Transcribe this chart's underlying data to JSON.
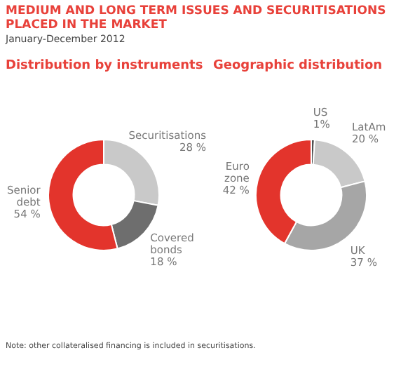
{
  "chart_data": [
    {
      "type": "other",
      "title": "MEDIUM AND LONG TERM ISSUES AND SECURITISATIONS PLACED IN THE MARKET",
      "subtitle": "January-December 2012"
    },
    {
      "type": "donut",
      "title": "Distribution by instruments",
      "categories": [
        "Securitisations",
        "Covered bonds",
        "Senior debt"
      ],
      "values": [
        28,
        18,
        54
      ],
      "colors": [
        "#c9c9c9",
        "#6e6e6e",
        "#e3342c"
      ],
      "value_labels": [
        "28 %",
        "18 %",
        "54 %"
      ]
    },
    {
      "type": "donut",
      "title": "Geographic distribution",
      "categories": [
        "US",
        "LatAm",
        "UK",
        "Euro zone"
      ],
      "values": [
        1,
        20,
        37,
        42
      ],
      "colors": [
        "#505050",
        "#c9c9c9",
        "#a6a6a6",
        "#e3342c"
      ],
      "value_labels": [
        "1%",
        "20 %",
        "37 %",
        "42 %"
      ],
      "annotations": [
        "Note: other collateralised financing is included in securitisations."
      ]
    }
  ]
}
